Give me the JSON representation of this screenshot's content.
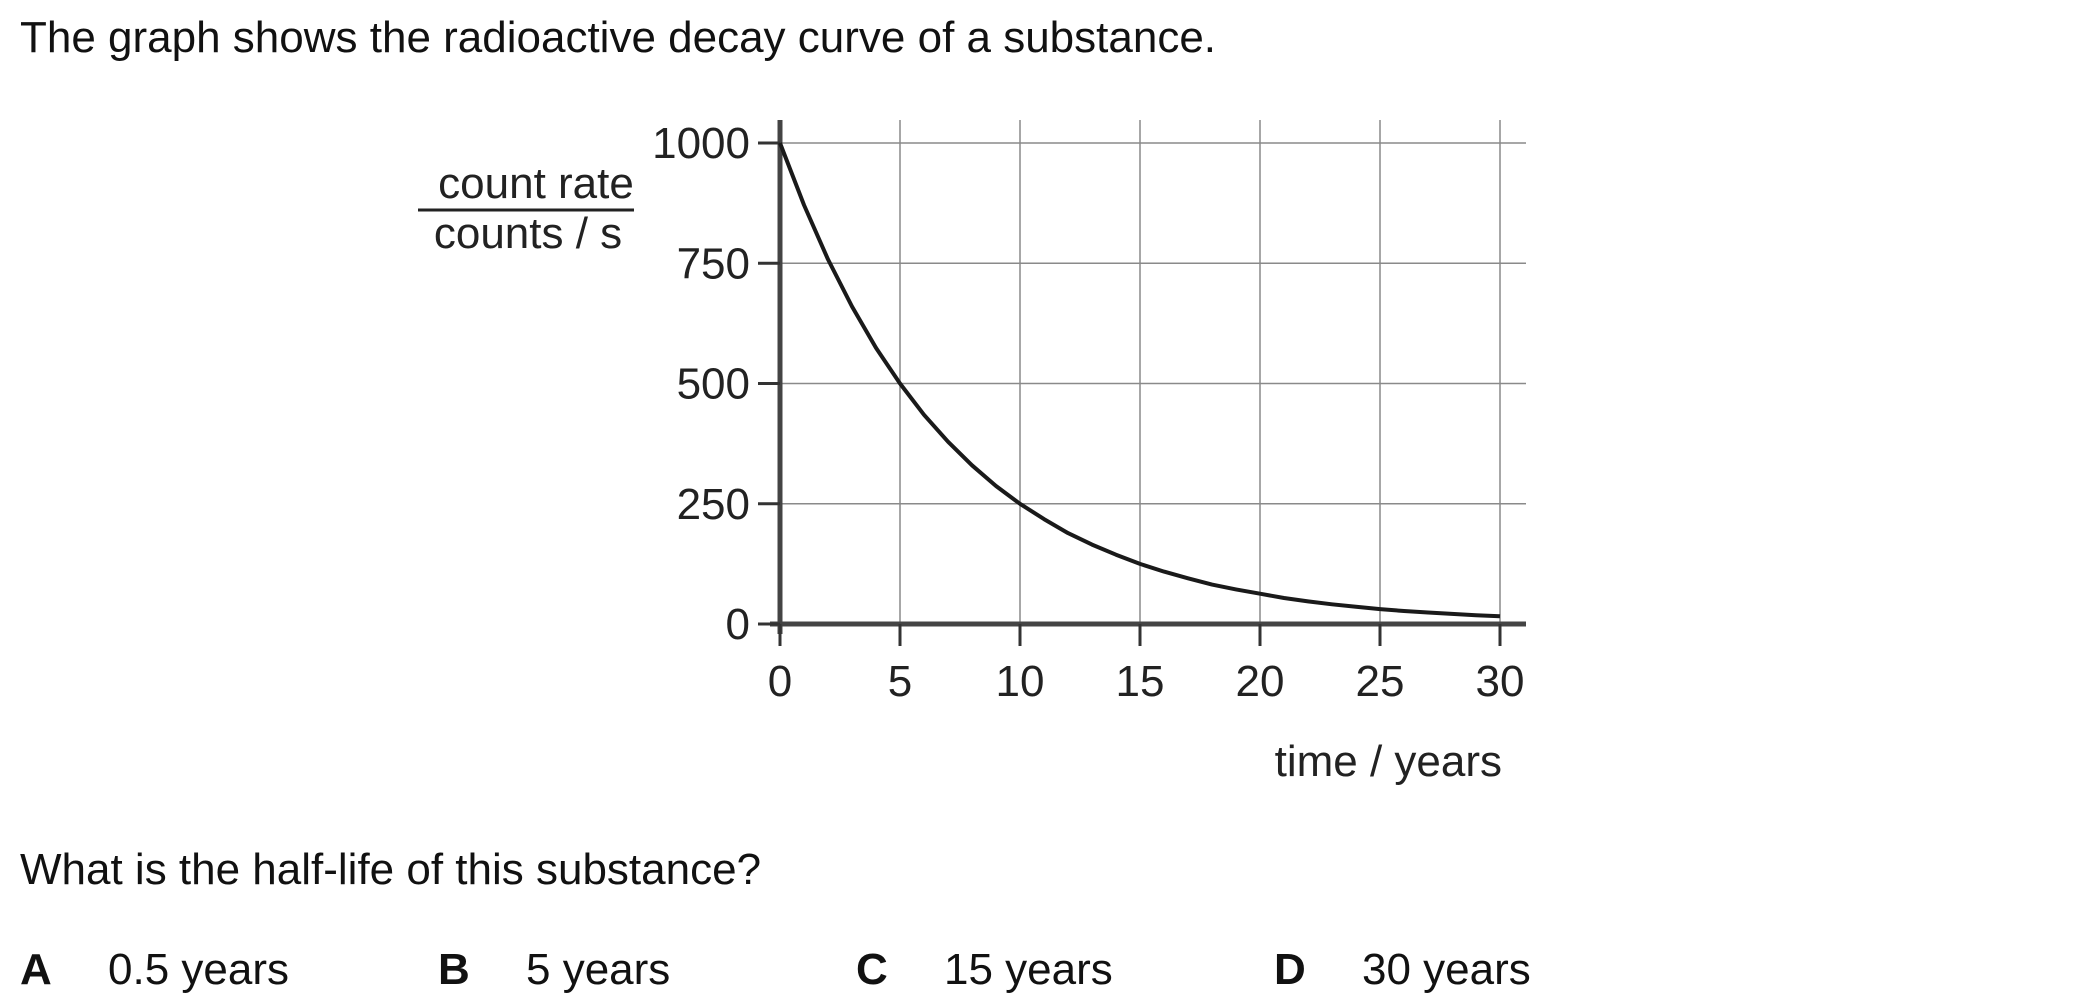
{
  "question": {
    "intro": "The graph shows the radioactive decay curve of a substance.",
    "prompt": "What is the half-life of this substance?",
    "options": [
      {
        "letter": "A",
        "text": "0.5 years"
      },
      {
        "letter": "B",
        "text": "5 years"
      },
      {
        "letter": "C",
        "text": "15 years"
      },
      {
        "letter": "D",
        "text": "30 years"
      }
    ]
  },
  "chart_data": {
    "type": "line",
    "title": "",
    "ylabel_top": "count rate",
    "ylabel_bottom": "counts / s",
    "xlabel": "time / years",
    "xlim": [
      0,
      30
    ],
    "ylim": [
      0,
      1000
    ],
    "x_ticks": [
      0,
      5,
      10,
      15,
      20,
      25,
      30
    ],
    "y_ticks": [
      0,
      250,
      500,
      750,
      1000
    ],
    "x_tick_labels": [
      "0",
      "5",
      "10",
      "15",
      "20",
      "25",
      "30"
    ],
    "y_tick_labels": [
      "0",
      "250",
      "500",
      "750",
      "1000"
    ],
    "grid": true,
    "series": [
      {
        "color": "#1a1a1a",
        "x": [
          0,
          1,
          2,
          3,
          4,
          5,
          6,
          7,
          8,
          9,
          10,
          11,
          12,
          13,
          14,
          15,
          16,
          17,
          18,
          19,
          20,
          21,
          22,
          23,
          24,
          25,
          26,
          27,
          28,
          29,
          30
        ],
        "y": [
          1000,
          871,
          758,
          660,
          574,
          500,
          435,
          379,
          330,
          287,
          250,
          218,
          189,
          165,
          144,
          125,
          109,
          95,
          82,
          72,
          63,
          54,
          47,
          41,
          36,
          31,
          27,
          24,
          21,
          18,
          16
        ]
      }
    ]
  }
}
